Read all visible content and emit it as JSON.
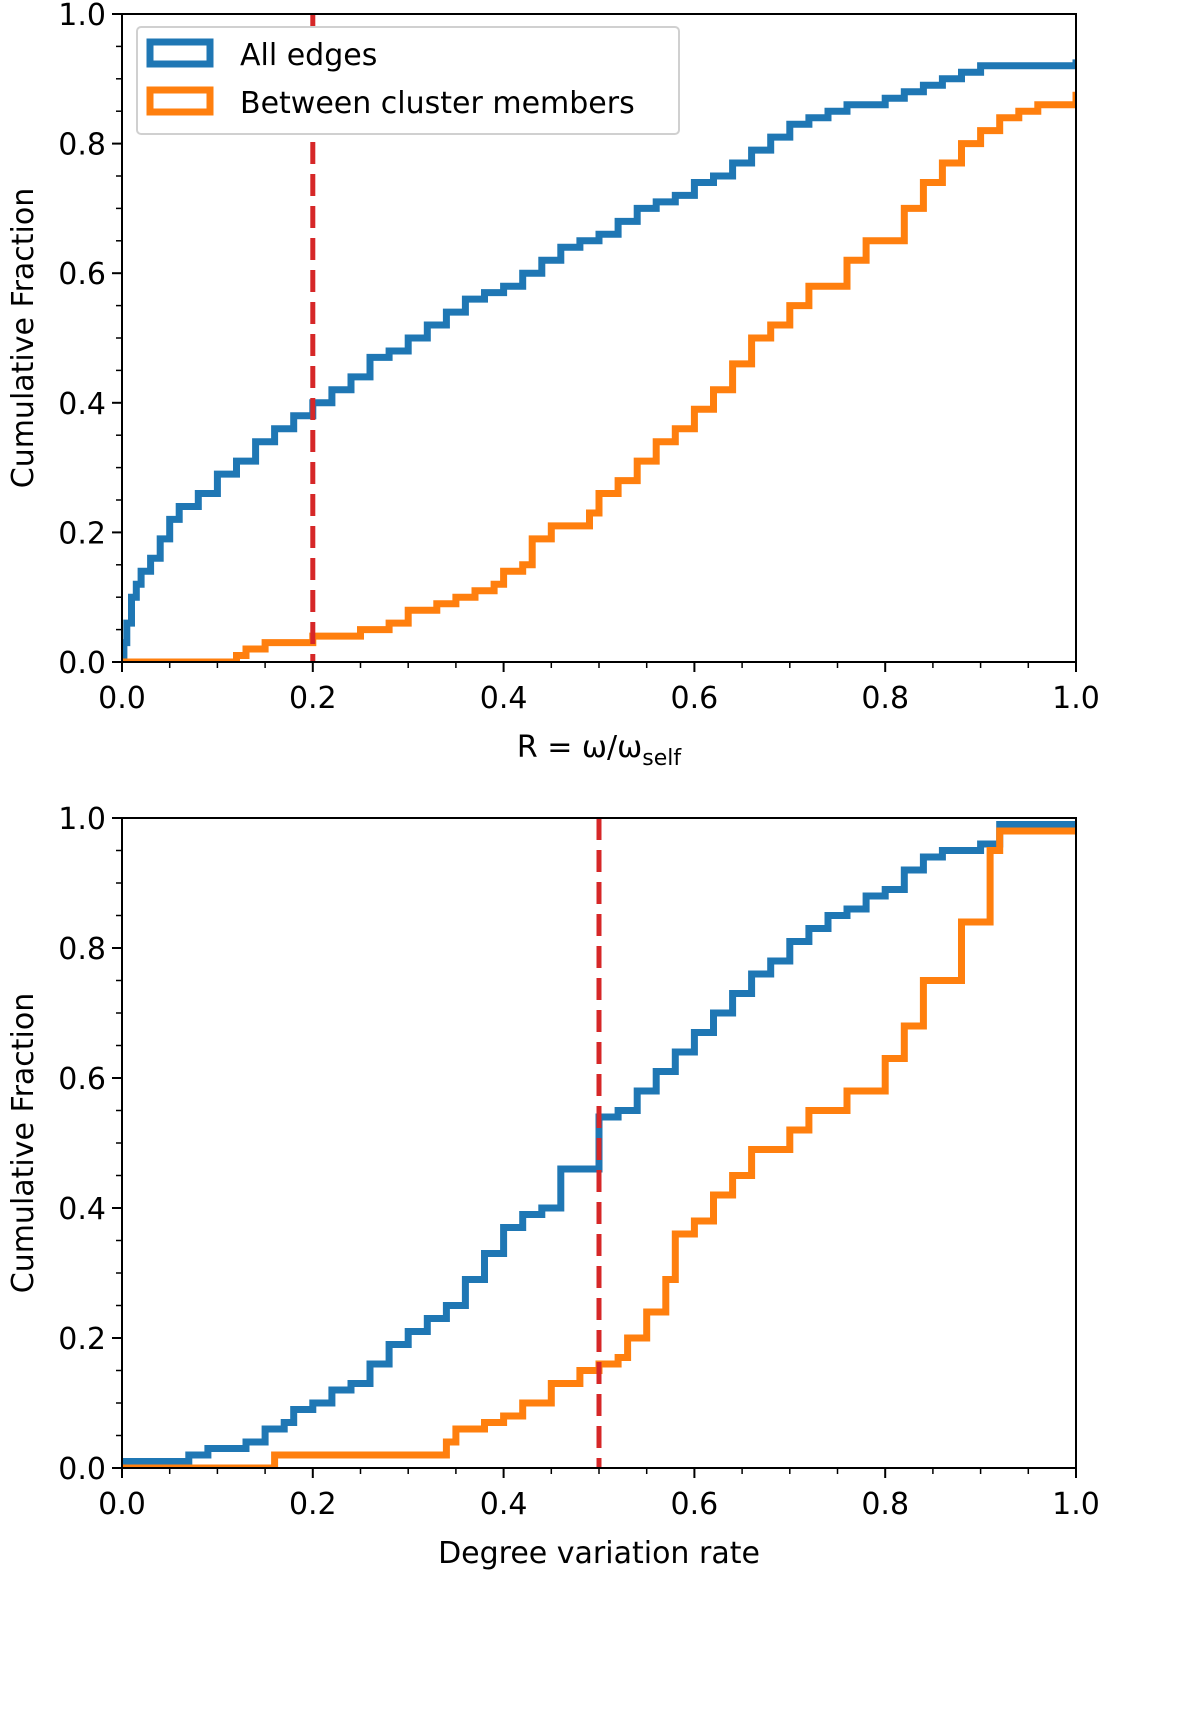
{
  "colors": {
    "all_edges": "#1f77b4",
    "between_members": "#ff7f0e",
    "threshold": "#d62728",
    "axis": "#000000"
  },
  "chart_data": [
    {
      "type": "line",
      "step": true,
      "title": "",
      "xlabel": "R = ω/ω",
      "xlabel_sub": "self",
      "ylabel": "Cumulative Fraction",
      "xlim": [
        0.0,
        1.0
      ],
      "ylim": [
        0.0,
        1.0
      ],
      "xticks": [
        "0.0",
        "0.2",
        "0.4",
        "0.6",
        "0.8",
        "1.0"
      ],
      "yticks": [
        "0.0",
        "0.2",
        "0.4",
        "0.6",
        "0.8",
        "1.0"
      ],
      "grid": false,
      "legend_position": "top-left",
      "legend": [
        "All edges",
        "Between cluster members"
      ],
      "threshold_x": 0.2,
      "series": [
        {
          "name": "All edges",
          "x": [
            0.0,
            0.002,
            0.005,
            0.01,
            0.015,
            0.02,
            0.03,
            0.04,
            0.05,
            0.06,
            0.08,
            0.1,
            0.12,
            0.14,
            0.16,
            0.18,
            0.2,
            0.22,
            0.24,
            0.26,
            0.28,
            0.3,
            0.32,
            0.34,
            0.36,
            0.38,
            0.4,
            0.42,
            0.44,
            0.46,
            0.48,
            0.5,
            0.52,
            0.54,
            0.56,
            0.58,
            0.6,
            0.62,
            0.64,
            0.66,
            0.68,
            0.7,
            0.72,
            0.74,
            0.76,
            0.78,
            0.8,
            0.82,
            0.84,
            0.86,
            0.88,
            0.9,
            0.92,
            0.95,
            1.0
          ],
          "y": [
            0.0,
            0.03,
            0.06,
            0.1,
            0.12,
            0.14,
            0.16,
            0.19,
            0.22,
            0.24,
            0.26,
            0.29,
            0.31,
            0.34,
            0.36,
            0.38,
            0.4,
            0.42,
            0.44,
            0.47,
            0.48,
            0.5,
            0.52,
            0.54,
            0.56,
            0.57,
            0.58,
            0.6,
            0.62,
            0.64,
            0.65,
            0.66,
            0.68,
            0.7,
            0.71,
            0.72,
            0.74,
            0.75,
            0.77,
            0.79,
            0.81,
            0.83,
            0.84,
            0.85,
            0.86,
            0.86,
            0.87,
            0.88,
            0.89,
            0.9,
            0.91,
            0.92,
            0.92,
            0.92,
            0.93
          ]
        },
        {
          "name": "Between cluster members",
          "x": [
            0.0,
            0.12,
            0.13,
            0.15,
            0.2,
            0.22,
            0.25,
            0.28,
            0.3,
            0.33,
            0.35,
            0.37,
            0.39,
            0.4,
            0.42,
            0.43,
            0.45,
            0.47,
            0.49,
            0.5,
            0.52,
            0.54,
            0.56,
            0.58,
            0.6,
            0.62,
            0.64,
            0.66,
            0.68,
            0.7,
            0.72,
            0.74,
            0.76,
            0.78,
            0.8,
            0.82,
            0.84,
            0.86,
            0.88,
            0.9,
            0.92,
            0.94,
            0.96,
            0.98,
            1.0
          ],
          "y": [
            0.0,
            0.01,
            0.02,
            0.03,
            0.04,
            0.04,
            0.05,
            0.06,
            0.08,
            0.09,
            0.1,
            0.11,
            0.12,
            0.14,
            0.15,
            0.19,
            0.21,
            0.21,
            0.23,
            0.26,
            0.28,
            0.31,
            0.34,
            0.36,
            0.39,
            0.42,
            0.46,
            0.5,
            0.52,
            0.55,
            0.58,
            0.58,
            0.62,
            0.65,
            0.65,
            0.7,
            0.74,
            0.77,
            0.8,
            0.82,
            0.84,
            0.85,
            0.86,
            0.86,
            0.88
          ]
        }
      ]
    },
    {
      "type": "line",
      "step": true,
      "title": "",
      "xlabel": "Degree variation rate",
      "ylabel": "Cumulative Fraction",
      "xlim": [
        0.0,
        1.0
      ],
      "ylim": [
        0.0,
        1.0
      ],
      "xticks": [
        "0.0",
        "0.2",
        "0.4",
        "0.6",
        "0.8",
        "1.0"
      ],
      "yticks": [
        "0.0",
        "0.2",
        "0.4",
        "0.6",
        "0.8",
        "1.0"
      ],
      "grid": false,
      "legend": [],
      "threshold_x": 0.5,
      "series": [
        {
          "name": "All edges",
          "x": [
            0.0,
            0.05,
            0.07,
            0.09,
            0.13,
            0.15,
            0.17,
            0.18,
            0.19,
            0.2,
            0.22,
            0.24,
            0.26,
            0.28,
            0.3,
            0.32,
            0.34,
            0.36,
            0.38,
            0.4,
            0.42,
            0.44,
            0.46,
            0.48,
            0.5,
            0.52,
            0.54,
            0.56,
            0.58,
            0.6,
            0.62,
            0.64,
            0.66,
            0.68,
            0.7,
            0.72,
            0.74,
            0.76,
            0.78,
            0.8,
            0.82,
            0.84,
            0.86,
            0.88,
            0.9,
            0.92,
            1.0
          ],
          "y": [
            0.01,
            0.01,
            0.02,
            0.03,
            0.04,
            0.06,
            0.07,
            0.09,
            0.09,
            0.1,
            0.12,
            0.13,
            0.16,
            0.19,
            0.21,
            0.23,
            0.25,
            0.29,
            0.33,
            0.37,
            0.39,
            0.4,
            0.46,
            0.46,
            0.54,
            0.55,
            0.58,
            0.61,
            0.64,
            0.67,
            0.7,
            0.73,
            0.76,
            0.78,
            0.81,
            0.83,
            0.85,
            0.86,
            0.88,
            0.89,
            0.92,
            0.94,
            0.95,
            0.95,
            0.96,
            0.99,
            0.99
          ]
        },
        {
          "name": "Between cluster members",
          "x": [
            0.0,
            0.16,
            0.2,
            0.34,
            0.35,
            0.38,
            0.4,
            0.42,
            0.45,
            0.48,
            0.5,
            0.52,
            0.53,
            0.55,
            0.57,
            0.58,
            0.6,
            0.62,
            0.64,
            0.66,
            0.7,
            0.72,
            0.74,
            0.76,
            0.8,
            0.82,
            0.84,
            0.88,
            0.9,
            0.91,
            0.92,
            1.0
          ],
          "y": [
            0.0,
            0.02,
            0.02,
            0.04,
            0.06,
            0.07,
            0.08,
            0.1,
            0.13,
            0.15,
            0.16,
            0.17,
            0.2,
            0.24,
            0.29,
            0.36,
            0.38,
            0.42,
            0.45,
            0.49,
            0.52,
            0.55,
            0.55,
            0.58,
            0.63,
            0.68,
            0.75,
            0.84,
            0.84,
            0.95,
            0.98,
            0.98
          ]
        }
      ]
    }
  ]
}
